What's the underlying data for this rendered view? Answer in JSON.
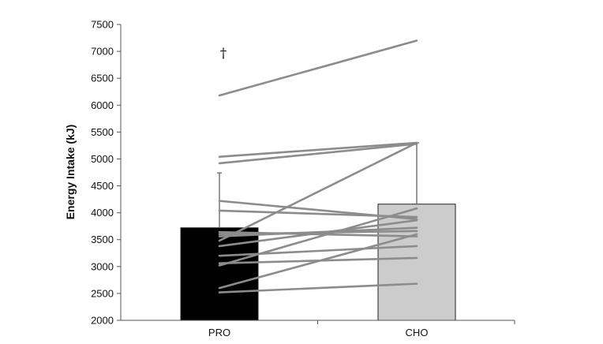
{
  "chart_data": {
    "type": "bar",
    "categories": [
      "PRO",
      "CHO"
    ],
    "values": [
      3720,
      4160
    ],
    "error_upper": [
      4740,
      5300
    ],
    "ylabel": "Energy Intake (kJ)",
    "ylim": [
      2000,
      7500
    ],
    "yticks": [
      2000,
      2500,
      3000,
      3500,
      4000,
      4500,
      5000,
      5500,
      6000,
      6500,
      7000,
      7500
    ],
    "annotation": "†",
    "colors": {
      "PRO": "#000000",
      "CHO": "#cccccc",
      "lines": "#8c8c8c"
    },
    "individual_pairs": [
      [
        6180,
        7200
      ],
      [
        5040,
        5300
      ],
      [
        4920,
        5280
      ],
      [
        3480,
        5300
      ],
      [
        4220,
        3880
      ],
      [
        4040,
        3920
      ],
      [
        3640,
        3560
      ],
      [
        3600,
        3660
      ],
      [
        3560,
        3720
      ],
      [
        3380,
        3860
      ],
      [
        3200,
        3380
      ],
      [
        3060,
        3160
      ],
      [
        3020,
        4080
      ],
      [
        2600,
        3600
      ],
      [
        2520,
        2680
      ]
    ]
  }
}
